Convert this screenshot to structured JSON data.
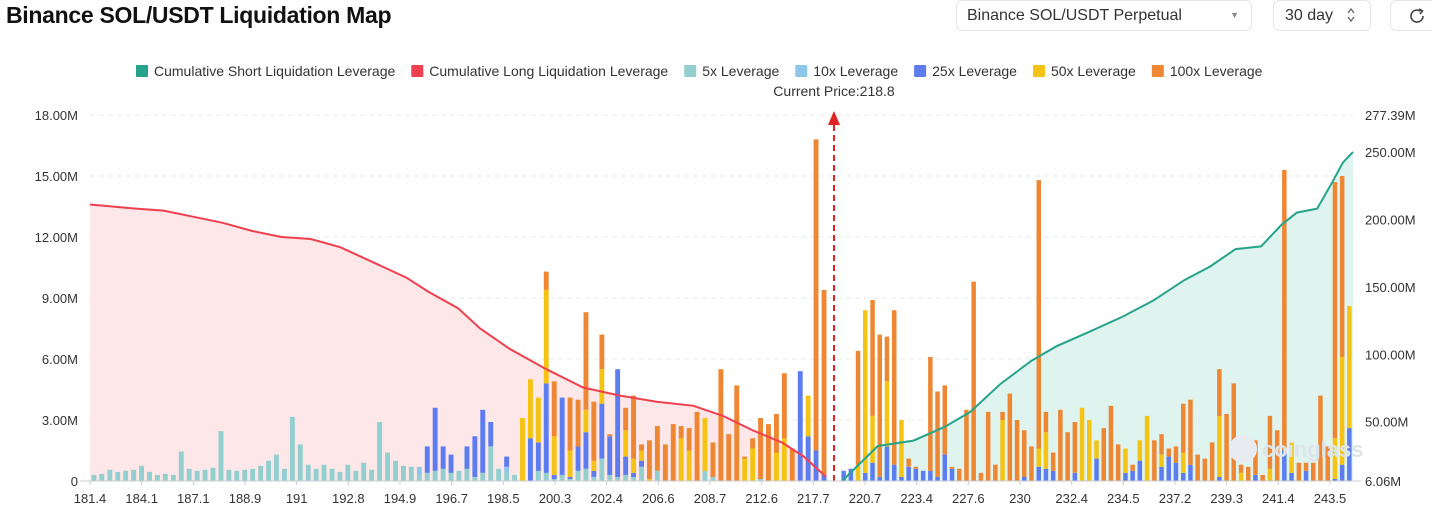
{
  "header": {
    "title": "Binance SOL/USDT Liquidation Map",
    "symbol_select": "Binance SOL/USDT Perpetual",
    "range_select": "30 day",
    "refresh_icon": "refresh-icon"
  },
  "chart_data": {
    "type": "bar",
    "current_price_label": "Current Price:218.8",
    "current_price": 218.8,
    "legend": [
      {
        "name": "Cumulative Short Liquidation Leverage",
        "color": "#26a38a"
      },
      {
        "name": "Cumulative Long Liquidation Leverage",
        "color": "#f0404f"
      },
      {
        "name": "5x Leverage",
        "color": "#93cfcf"
      },
      {
        "name": "10x Leverage",
        "color": "#8ec6ea"
      },
      {
        "name": "25x Leverage",
        "color": "#5c7cf0"
      },
      {
        "name": "50x Leverage",
        "color": "#f5c313"
      },
      {
        "name": "100x Leverage",
        "color": "#ee8734"
      }
    ],
    "x_tick_labels": [
      "181.4",
      "184.1",
      "187.1",
      "188.9",
      "191",
      "192.8",
      "194.9",
      "196.7",
      "198.5",
      "200.3",
      "202.4",
      "206.6",
      "208.7",
      "212.6",
      "217.7",
      "220.7",
      "223.4",
      "227.6",
      "230",
      "232.4",
      "234.5",
      "237.2",
      "239.3",
      "241.4",
      "243.5"
    ],
    "y_left": {
      "ticks": [
        "0",
        "3.00M",
        "6.00M",
        "9.00M",
        "12.00M",
        "15.00M",
        "18.00M"
      ],
      "range": [
        0,
        18000000
      ]
    },
    "y_right": {
      "ticks": [
        "6.06M",
        "50.00M",
        "100.00M",
        "150.00M",
        "200.00M",
        "250.00M",
        "277.39M"
      ],
      "range": [
        6060000,
        277390000
      ]
    },
    "bars_left": [
      [
        0.3,
        0,
        0,
        0,
        0
      ],
      [
        0.35,
        0,
        0,
        0,
        0
      ],
      [
        0.55,
        0,
        0,
        0,
        0
      ],
      [
        0.45,
        0,
        0,
        0,
        0
      ],
      [
        0.5,
        0,
        0,
        0,
        0
      ],
      [
        0.55,
        0,
        0,
        0,
        0
      ],
      [
        0.75,
        0,
        0,
        0,
        0
      ],
      [
        0.45,
        0,
        0,
        0,
        0
      ],
      [
        0.3,
        0,
        0,
        0,
        0
      ],
      [
        0.35,
        0,
        0,
        0,
        0
      ],
      [
        0.3,
        0,
        0,
        0,
        0
      ],
      [
        1.45,
        0,
        0,
        0,
        0
      ],
      [
        0.6,
        0,
        0,
        0,
        0
      ],
      [
        0.5,
        0,
        0,
        0,
        0
      ],
      [
        0.55,
        0,
        0,
        0,
        0
      ],
      [
        0.65,
        0,
        0,
        0,
        0
      ],
      [
        2.45,
        0,
        0,
        0,
        0
      ],
      [
        0.55,
        0,
        0,
        0,
        0
      ],
      [
        0.5,
        0,
        0,
        0,
        0
      ],
      [
        0.55,
        0,
        0,
        0,
        0
      ],
      [
        0.6,
        0,
        0,
        0,
        0
      ],
      [
        0.75,
        0,
        0,
        0,
        0
      ],
      [
        1.0,
        0,
        0,
        0,
        0
      ],
      [
        1.3,
        0,
        0,
        0,
        0
      ],
      [
        0.6,
        0,
        0,
        0,
        0
      ],
      [
        3.15,
        0,
        0,
        0,
        0
      ],
      [
        1.8,
        0,
        0,
        0,
        0
      ],
      [
        0.8,
        0,
        0,
        0,
        0
      ],
      [
        0.6,
        0,
        0,
        0,
        0
      ],
      [
        0.8,
        0,
        0,
        0,
        0
      ],
      [
        0.6,
        0,
        0,
        0,
        0
      ],
      [
        0.45,
        0,
        0,
        0,
        0
      ],
      [
        0.8,
        0,
        0,
        0,
        0
      ],
      [
        0.5,
        0,
        0,
        0,
        0
      ],
      [
        0.9,
        0,
        0,
        0,
        0
      ],
      [
        0.55,
        0,
        0,
        0,
        0
      ],
      [
        2.9,
        0,
        0,
        0,
        0
      ],
      [
        1.4,
        0,
        0,
        0,
        0
      ],
      [
        1.0,
        0,
        0,
        0,
        0
      ],
      [
        0.75,
        0,
        0,
        0,
        0
      ],
      [
        0.7,
        0,
        0,
        0,
        0
      ],
      [
        0.3,
        0.4,
        0,
        0,
        0
      ],
      [
        0.4,
        0,
        1.3,
        0,
        0
      ],
      [
        0.5,
        0,
        3.1,
        0,
        0
      ],
      [
        0.6,
        0,
        1.1,
        0,
        0
      ],
      [
        0.4,
        0,
        0.9,
        0,
        0
      ],
      [
        0.5,
        0,
        0,
        0,
        0
      ],
      [
        0.6,
        0,
        1.1,
        0,
        0
      ],
      [
        0.2,
        0,
        2.0,
        0,
        0
      ],
      [
        0.4,
        0,
        3.1,
        0,
        0
      ],
      [
        1.7,
        0,
        1.2,
        0,
        0
      ],
      [
        0.6,
        0,
        0,
        0,
        0
      ],
      [
        0.4,
        0.3,
        0.5,
        0,
        0
      ],
      [
        0.3,
        0,
        0,
        0,
        0
      ],
      [
        0,
        0,
        0,
        3.1,
        0
      ],
      [
        0,
        0,
        2.1,
        2.9,
        0
      ],
      [
        0.5,
        0,
        1.4,
        2.2,
        0
      ],
      [
        0.4,
        0,
        4.4,
        4.6,
        0.9
      ],
      [
        0.1,
        0,
        0.2,
        1.9,
        2.7
      ],
      [
        0.3,
        0,
        3.8,
        0,
        0
      ],
      [
        0.1,
        0,
        0.1,
        1.3,
        2.6
      ],
      [
        0.5,
        0,
        1.2,
        0,
        2.3
      ],
      [
        0.6,
        0,
        1.8,
        1.1,
        4.8
      ],
      [
        0.2,
        0,
        0.3,
        0.5,
        2.9
      ],
      [
        1.1,
        0,
        2.7,
        1.7,
        1.7
      ],
      [
        0.3,
        0,
        1.9,
        0,
        0.1
      ],
      [
        0.2,
        0,
        5.3,
        0,
        0
      ],
      [
        0.3,
        0,
        0.9,
        1.3,
        1.1
      ],
      [
        0.2,
        0,
        0.2,
        0.7,
        3.1
      ],
      [
        0.7,
        0,
        0.3,
        0.5,
        0.3
      ],
      [
        0,
        0,
        0,
        0.1,
        1.9
      ],
      [
        0.5,
        0,
        0,
        0,
        2.2
      ],
      [
        0,
        0,
        0,
        0,
        1.8
      ],
      [
        0,
        0,
        0,
        0,
        2.8
      ],
      [
        0,
        0,
        0,
        2.1,
        0.6
      ],
      [
        0,
        0,
        0,
        1.5,
        1.1
      ],
      [
        0,
        0,
        0,
        0,
        3.4
      ],
      [
        0.5,
        0,
        0,
        2.6,
        0
      ],
      [
        0.2,
        0,
        0,
        0,
        1.7
      ],
      [
        0,
        0,
        0,
        0,
        5.5
      ],
      [
        0,
        0,
        0,
        0,
        2.3
      ],
      [
        0,
        0,
        0,
        0,
        4.7
      ],
      [
        0,
        0,
        0,
        1.1,
        0.1
      ],
      [
        0,
        0,
        0,
        1.6,
        0.5
      ],
      [
        0.1,
        0,
        0,
        0,
        3.0
      ],
      [
        0,
        0,
        0,
        0,
        2.8
      ],
      [
        0,
        0,
        0,
        1.4,
        1.9
      ],
      [
        0,
        0,
        0,
        2.1,
        3.2
      ],
      [
        0,
        0,
        0,
        0,
        1.6
      ],
      [
        0,
        0,
        5.4,
        0,
        0
      ],
      [
        0,
        0,
        2.2,
        2.0,
        0
      ],
      [
        0,
        0,
        1.5,
        0,
        15.3
      ],
      [
        0,
        0,
        0.3,
        0,
        9.1
      ]
    ],
    "bars_right": [
      [
        0,
        0,
        0.5,
        0,
        0
      ],
      [
        0,
        0,
        0.6,
        0,
        0
      ],
      [
        0,
        0,
        0,
        0.8,
        5.6
      ],
      [
        0,
        0,
        0.4,
        8.0,
        0
      ],
      [
        0,
        0,
        0.9,
        2.3,
        5.7
      ],
      [
        0,
        0,
        0.2,
        0,
        7.0
      ],
      [
        0,
        0,
        1.7,
        3.2,
        2.2
      ],
      [
        0,
        0,
        0.8,
        0,
        7.6
      ],
      [
        0,
        0,
        0.2,
        2.8,
        0
      ],
      [
        0,
        0,
        0.7,
        0,
        0.4
      ],
      [
        0,
        0,
        0.6,
        0,
        0.1
      ],
      [
        0,
        0,
        0.5,
        0,
        0
      ],
      [
        0,
        0,
        0.5,
        0,
        5.6
      ],
      [
        0,
        0,
        0.2,
        0,
        4.2
      ],
      [
        0,
        0,
        1.3,
        0,
        3.4
      ],
      [
        0,
        0,
        0.6,
        0,
        0.1
      ],
      [
        0,
        0,
        0,
        0,
        0.6
      ],
      [
        0,
        0,
        0,
        0,
        3.5
      ],
      [
        0,
        0,
        0,
        0,
        9.8
      ],
      [
        0,
        0,
        0,
        0,
        0.4
      ],
      [
        0,
        0,
        0,
        0,
        3.4
      ],
      [
        0,
        0,
        0,
        0,
        0.8
      ],
      [
        0,
        0,
        0,
        3.0,
        0.4
      ],
      [
        0,
        0,
        0,
        0,
        4.3
      ],
      [
        0,
        0,
        0,
        0,
        3.0
      ],
      [
        0,
        0,
        0.2,
        0,
        2.3
      ],
      [
        0,
        0,
        0,
        0,
        1.7
      ],
      [
        0,
        0,
        0.7,
        0.9,
        13.2
      ],
      [
        0,
        0,
        0.6,
        1.8,
        1.0
      ],
      [
        0,
        0,
        0.5,
        0,
        0.9
      ],
      [
        0,
        0,
        0,
        0,
        3.5
      ],
      [
        0,
        0,
        0,
        0,
        2.4
      ],
      [
        0,
        0,
        0.4,
        0,
        2.5
      ],
      [
        0,
        0,
        0,
        3.6,
        0
      ],
      [
        0,
        0,
        0,
        3.0,
        0
      ],
      [
        0,
        0,
        1.1,
        0.9,
        0
      ],
      [
        0,
        0,
        0,
        0,
        2.6
      ],
      [
        0,
        0,
        0,
        0,
        3.7
      ],
      [
        0,
        0,
        0,
        0,
        1.8
      ],
      [
        0,
        0,
        0.4,
        1.2,
        0
      ],
      [
        0,
        0,
        0.5,
        0,
        0.3
      ],
      [
        0,
        0,
        1.0,
        1.0,
        0
      ],
      [
        0,
        0,
        0,
        3.2,
        0
      ],
      [
        0,
        0,
        0,
        0,
        2.0
      ],
      [
        0,
        0,
        0.7,
        0.6,
        1.0
      ],
      [
        0,
        0,
        1.2,
        0,
        0.4
      ],
      [
        0,
        0,
        0.9,
        0,
        0.8
      ],
      [
        0,
        0,
        0.4,
        1.0,
        2.4
      ],
      [
        0,
        0,
        0.8,
        0,
        3.2
      ],
      [
        0,
        0,
        0,
        0,
        1.3
      ],
      [
        0,
        0,
        0,
        0,
        1.1
      ],
      [
        0,
        0,
        0,
        0,
        1.9
      ],
      [
        0,
        0,
        0.2,
        3.0,
        2.3
      ],
      [
        0,
        0,
        0,
        0,
        3.3
      ],
      [
        0,
        0,
        0,
        0,
        4.8
      ],
      [
        0,
        0,
        0,
        0.4,
        0.4
      ],
      [
        0,
        0,
        0,
        0,
        0.7
      ],
      [
        0,
        0,
        0.3,
        0,
        1.7
      ],
      [
        0,
        0,
        0,
        0,
        0.3
      ],
      [
        0,
        0,
        0,
        0.6,
        2.6
      ],
      [
        0,
        0,
        0,
        0,
        2.5
      ],
      [
        0,
        0,
        1.5,
        0,
        13.8
      ],
      [
        0,
        0,
        0.4,
        1.5,
        0
      ],
      [
        0,
        0,
        0,
        0,
        0.9
      ],
      [
        0,
        0,
        0.5,
        0,
        0.4
      ],
      [
        0,
        0,
        0,
        0,
        0.9
      ],
      [
        0,
        0,
        0,
        0,
        4.2
      ],
      [
        0,
        0,
        0,
        0,
        1.7
      ],
      [
        0,
        0,
        0.1,
        2.0,
        12.6
      ],
      [
        0,
        0,
        0.8,
        5.3,
        8.9
      ],
      [
        0,
        0,
        2.6,
        6.0,
        0
      ]
    ],
    "long_cumulative": [
      [
        0,
        13.6
      ],
      [
        0.03,
        13.5
      ],
      [
        0.06,
        13.4
      ],
      [
        0.1,
        13.3
      ],
      [
        0.14,
        13.0
      ],
      [
        0.18,
        12.7
      ],
      [
        0.22,
        12.3
      ],
      [
        0.26,
        12.0
      ],
      [
        0.3,
        11.9
      ],
      [
        0.34,
        11.5
      ],
      [
        0.37,
        11.0
      ],
      [
        0.4,
        10.5
      ],
      [
        0.43,
        10.0
      ],
      [
        0.46,
        9.3
      ],
      [
        0.5,
        8.5
      ],
      [
        0.53,
        7.5
      ],
      [
        0.57,
        6.5
      ],
      [
        0.62,
        5.5
      ],
      [
        0.67,
        4.6
      ],
      [
        0.72,
        4.2
      ],
      [
        0.77,
        3.9
      ],
      [
        0.82,
        3.7
      ],
      [
        0.86,
        3.2
      ],
      [
        0.9,
        2.5
      ],
      [
        0.94,
        1.9
      ],
      [
        0.97,
        1.2
      ],
      [
        1.0,
        0.2
      ]
    ],
    "short_cumulative": [
      [
        0,
        6.06
      ],
      [
        0.07,
        32
      ],
      [
        0.14,
        36
      ],
      [
        0.2,
        46
      ],
      [
        0.25,
        57
      ],
      [
        0.31,
        78
      ],
      [
        0.37,
        95
      ],
      [
        0.42,
        106
      ],
      [
        0.48,
        116
      ],
      [
        0.55,
        128
      ],
      [
        0.61,
        140
      ],
      [
        0.67,
        155
      ],
      [
        0.72,
        165
      ],
      [
        0.77,
        178
      ],
      [
        0.82,
        180
      ],
      [
        0.86,
        196
      ],
      [
        0.89,
        205
      ],
      [
        0.93,
        208
      ],
      [
        0.96,
        228
      ],
      [
        0.98,
        242
      ],
      [
        1.0,
        250
      ]
    ],
    "watermark": "coinglass"
  }
}
